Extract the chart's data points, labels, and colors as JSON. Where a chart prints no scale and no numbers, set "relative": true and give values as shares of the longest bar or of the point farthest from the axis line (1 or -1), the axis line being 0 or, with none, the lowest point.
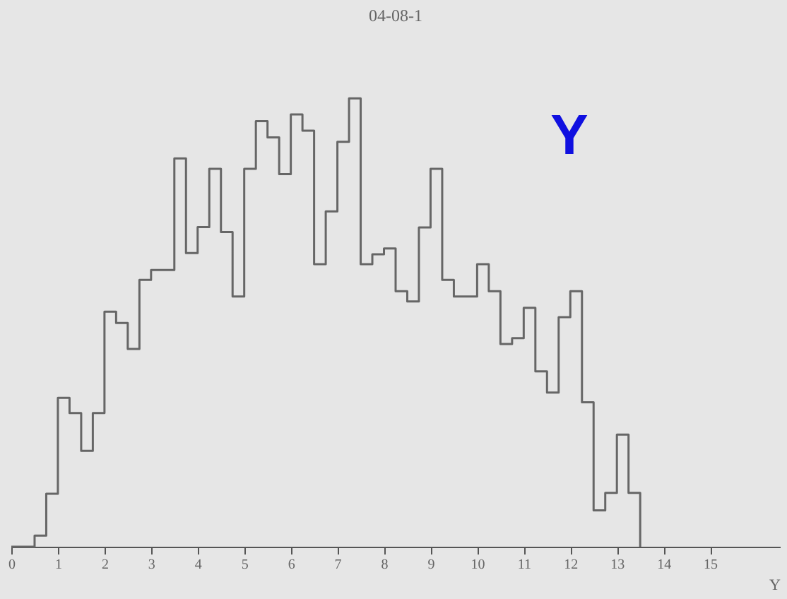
{
  "chart_data": {
    "type": "step",
    "title": "04-08-1",
    "xlabel": "Y",
    "relative": true,
    "annotations": [
      "Y"
    ],
    "x": [
      0,
      0.5,
      0.75,
      1.0,
      1.25,
      1.5,
      1.75,
      2.0,
      2.25,
      2.5,
      2.75,
      3.0,
      3.25,
      3.5,
      3.75,
      4.0,
      4.25,
      4.5,
      4.75,
      5.0,
      5.25,
      5.5,
      5.75,
      6.0,
      6.25,
      6.5,
      6.75,
      7.0,
      7.25,
      7.5,
      7.75,
      8.0,
      8.25,
      8.5,
      8.75,
      9.0,
      9.25,
      9.5,
      9.75,
      10.0,
      10.25,
      10.5,
      10.75,
      11.0,
      11.25,
      11.5,
      11.75,
      12.0,
      12.25,
      12.5,
      12.75,
      13.0,
      13.25,
      13.5
    ],
    "values": [
      0,
      0.025,
      0.118,
      0.332,
      0.298,
      0.214,
      0.298,
      0.524,
      0.499,
      0.441,
      0.595,
      0.617,
      0.617,
      0.866,
      0.655,
      0.713,
      0.843,
      0.702,
      0.558,
      0.843,
      0.949,
      0.913,
      0.831,
      0.964,
      0.928,
      0.63,
      0.748,
      0.903,
      1,
      0.63,
      0.652,
      0.665,
      0.57,
      0.547,
      0.712,
      0.843,
      0.595,
      0.558,
      0.558,
      0.63,
      0.57,
      0.452,
      0.465,
      0.533,
      0.391,
      0.344,
      0.512,
      0.57,
      0.322,
      0.081,
      0.12,
      0.25,
      0.12,
      0
    ],
    "color": "#666666",
    "xlim": [
      0,
      16.5
    ],
    "xticks": [
      0,
      1,
      2,
      3,
      4,
      5,
      6,
      7,
      8,
      9,
      10,
      11,
      12,
      13,
      14,
      15
    ],
    "grid": false,
    "marker": "none"
  }
}
